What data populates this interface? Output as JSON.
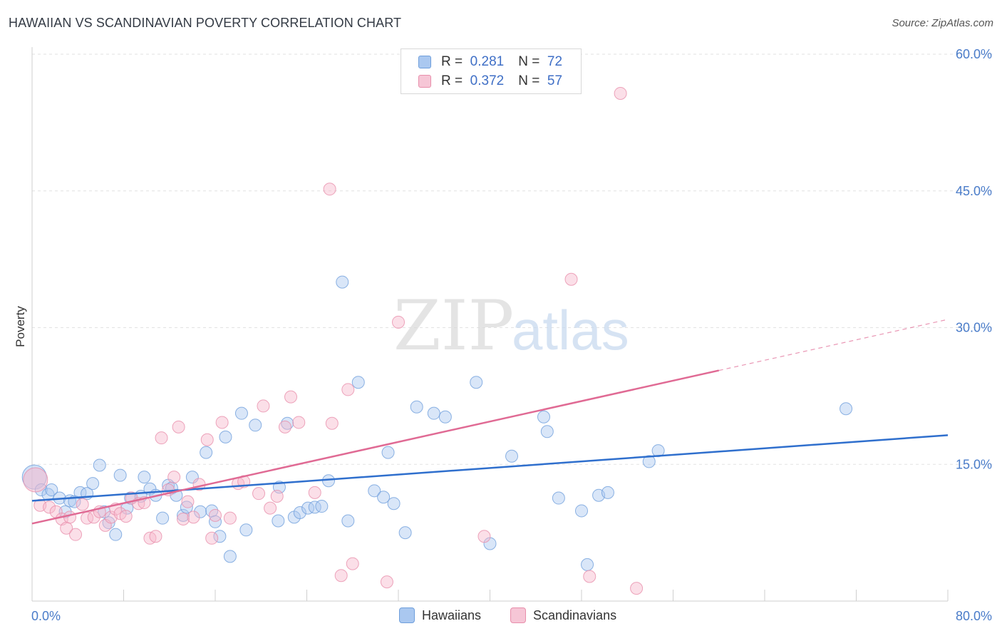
{
  "title": "HAWAIIAN VS SCANDINAVIAN POVERTY CORRELATION CHART",
  "source": "Source: ZipAtlas.com",
  "watermark": {
    "part1": "ZIP",
    "part2": "atlas"
  },
  "legend_top": [
    {
      "r_label": "R =",
      "r_value": "0.281",
      "n_label": "N =",
      "n_value": "72"
    },
    {
      "r_label": "R =",
      "r_value": "0.372",
      "n_label": "N =",
      "n_value": "57"
    }
  ],
  "colors": {
    "hawaiians_fill": "#aac8f0",
    "hawaiians_stroke": "#6f9fdc",
    "hawaiians_line": "#2f6fcd",
    "scandinavians_fill": "#f6b9cd",
    "scandinavians_stroke": "#e88eab",
    "scandinavians_line": "#e06a94",
    "grid": "#e2e2e2",
    "tick_text": "#4a7cc9"
  },
  "chart_data": {
    "type": "scatter",
    "title": "HAWAIIAN VS SCANDINAVIAN POVERTY CORRELATION CHART",
    "xlabel": "",
    "ylabel": "Poverty",
    "xlim": [
      0,
      80
    ],
    "ylim": [
      0,
      60
    ],
    "x_tick_labels": [
      "0.0%",
      "80.0%"
    ],
    "y_ticks": [
      15,
      30,
      45,
      60
    ],
    "y_tick_labels": [
      "15.0%",
      "30.0%",
      "45.0%",
      "60.0%"
    ],
    "grid": true,
    "legend_position": "bottom-center",
    "series": [
      {
        "name": "Hawaiians",
        "r": 0.281,
        "n": 72,
        "trend": {
          "x": [
            0,
            80
          ],
          "y": [
            11.0,
            18.2
          ]
        },
        "points": [
          [
            0.2,
            13.6
          ],
          [
            0.8,
            12.2
          ],
          [
            1.4,
            11.7
          ],
          [
            1.7,
            12.2
          ],
          [
            2.4,
            11.3
          ],
          [
            2.9,
            9.8
          ],
          [
            3.3,
            11.0
          ],
          [
            3.7,
            10.9
          ],
          [
            4.2,
            11.9
          ],
          [
            4.8,
            11.8
          ],
          [
            5.3,
            12.9
          ],
          [
            5.9,
            14.9
          ],
          [
            6.3,
            9.8
          ],
          [
            6.7,
            8.6
          ],
          [
            7.3,
            7.3
          ],
          [
            7.7,
            13.8
          ],
          [
            8.3,
            10.2
          ],
          [
            8.6,
            11.3
          ],
          [
            9.5,
            11.5
          ],
          [
            9.8,
            13.6
          ],
          [
            10.3,
            12.3
          ],
          [
            10.8,
            11.6
          ],
          [
            11.4,
            9.1
          ],
          [
            11.9,
            12.7
          ],
          [
            12.2,
            12.4
          ],
          [
            12.6,
            11.6
          ],
          [
            13.2,
            9.4
          ],
          [
            13.5,
            10.3
          ],
          [
            14.0,
            13.6
          ],
          [
            14.7,
            9.8
          ],
          [
            15.2,
            16.3
          ],
          [
            15.7,
            9.9
          ],
          [
            16.0,
            8.7
          ],
          [
            16.4,
            7.1
          ],
          [
            16.9,
            18.0
          ],
          [
            17.3,
            4.9
          ],
          [
            18.3,
            20.6
          ],
          [
            18.7,
            7.8
          ],
          [
            19.5,
            19.3
          ],
          [
            21.5,
            8.8
          ],
          [
            21.6,
            12.5
          ],
          [
            22.3,
            19.5
          ],
          [
            22.9,
            9.2
          ],
          [
            23.4,
            9.7
          ],
          [
            24.1,
            10.2
          ],
          [
            24.7,
            10.3
          ],
          [
            25.3,
            10.4
          ],
          [
            25.9,
            13.2
          ],
          [
            27.1,
            35.0
          ],
          [
            27.6,
            8.8
          ],
          [
            28.5,
            24.0
          ],
          [
            29.9,
            12.1
          ],
          [
            30.7,
            11.4
          ],
          [
            31.1,
            16.3
          ],
          [
            31.6,
            10.7
          ],
          [
            32.6,
            7.5
          ],
          [
            33.6,
            21.3
          ],
          [
            35.1,
            20.6
          ],
          [
            36.1,
            20.2
          ],
          [
            38.8,
            24.0
          ],
          [
            40.0,
            6.3
          ],
          [
            41.9,
            15.9
          ],
          [
            44.7,
            20.2
          ],
          [
            45.0,
            18.6
          ],
          [
            46.0,
            11.3
          ],
          [
            48.0,
            9.9
          ],
          [
            48.5,
            4.0
          ],
          [
            49.5,
            11.6
          ],
          [
            50.3,
            11.9
          ],
          [
            53.9,
            15.3
          ],
          [
            54.7,
            16.5
          ],
          [
            71.1,
            21.1
          ]
        ]
      },
      {
        "name": "Scandinavians",
        "r": 0.372,
        "n": 57,
        "trend": {
          "x": [
            0,
            60
          ],
          "y": [
            8.5,
            25.3
          ]
        },
        "trend_dashed": {
          "x": [
            60,
            80
          ],
          "y": [
            25.3,
            30.9
          ]
        },
        "points": [
          [
            0.3,
            13.3
          ],
          [
            0.7,
            10.5
          ],
          [
            1.5,
            10.3
          ],
          [
            2.1,
            9.8
          ],
          [
            2.6,
            9.0
          ],
          [
            3.0,
            8.0
          ],
          [
            3.3,
            9.2
          ],
          [
            3.8,
            7.3
          ],
          [
            4.4,
            10.6
          ],
          [
            4.8,
            9.1
          ],
          [
            5.4,
            9.2
          ],
          [
            5.9,
            9.8
          ],
          [
            6.4,
            8.3
          ],
          [
            6.9,
            9.2
          ],
          [
            7.3,
            10.1
          ],
          [
            7.7,
            9.6
          ],
          [
            8.2,
            9.3
          ],
          [
            8.7,
            11.3
          ],
          [
            9.3,
            10.7
          ],
          [
            9.8,
            10.8
          ],
          [
            10.3,
            6.9
          ],
          [
            10.8,
            7.1
          ],
          [
            11.3,
            17.9
          ],
          [
            11.9,
            12.2
          ],
          [
            12.4,
            13.6
          ],
          [
            12.8,
            19.1
          ],
          [
            13.2,
            9.0
          ],
          [
            13.6,
            10.9
          ],
          [
            14.1,
            9.2
          ],
          [
            14.6,
            12.8
          ],
          [
            15.3,
            17.7
          ],
          [
            15.7,
            6.9
          ],
          [
            16.0,
            9.4
          ],
          [
            16.6,
            19.6
          ],
          [
            17.3,
            9.1
          ],
          [
            18.0,
            12.9
          ],
          [
            18.5,
            13.1
          ],
          [
            19.8,
            11.8
          ],
          [
            20.2,
            21.4
          ],
          [
            20.8,
            10.2
          ],
          [
            21.4,
            11.5
          ],
          [
            22.1,
            19.1
          ],
          [
            22.6,
            22.4
          ],
          [
            23.3,
            19.6
          ],
          [
            24.7,
            11.9
          ],
          [
            26.0,
            45.2
          ],
          [
            26.2,
            19.5
          ],
          [
            27.0,
            2.8
          ],
          [
            27.6,
            23.2
          ],
          [
            28.0,
            4.1
          ],
          [
            31.0,
            2.1
          ],
          [
            32.0,
            30.6
          ],
          [
            39.5,
            7.1
          ],
          [
            47.1,
            35.3
          ],
          [
            48.7,
            2.7
          ],
          [
            51.4,
            55.7
          ],
          [
            52.8,
            1.4
          ]
        ]
      }
    ]
  }
}
